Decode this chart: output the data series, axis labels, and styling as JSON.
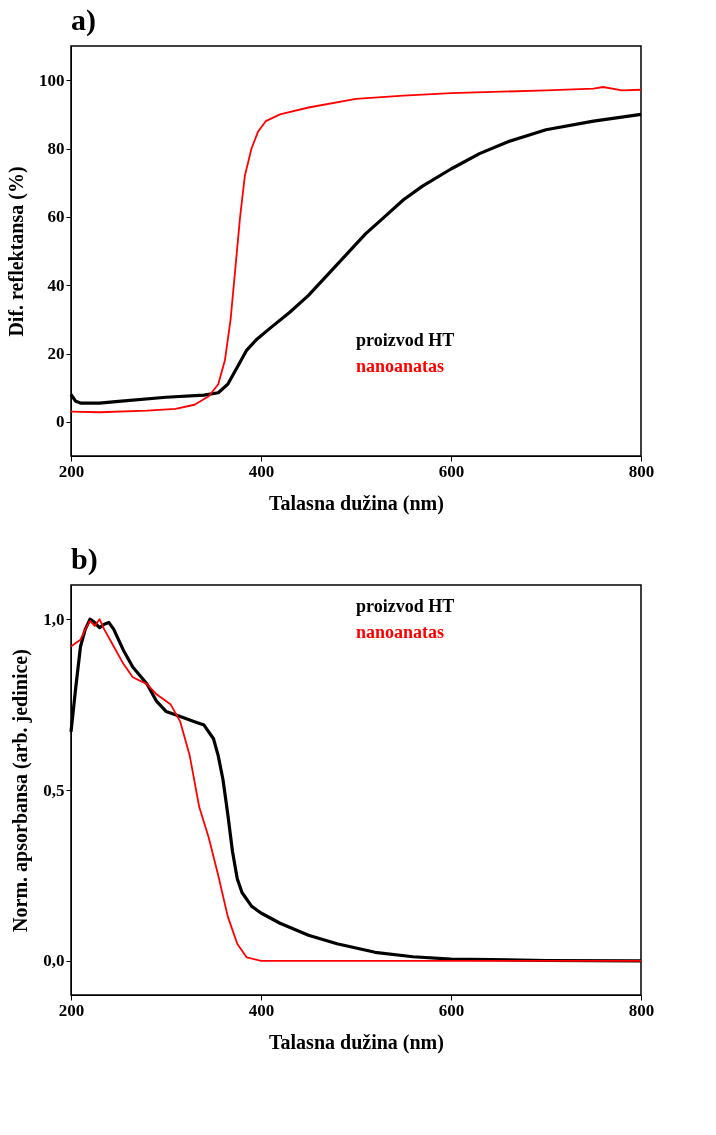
{
  "chart_data": [
    {
      "type": "line",
      "title": "a)",
      "xlabel": "Talasna dužina (nm)",
      "ylabel": "Dif. reflektansa (%)",
      "xlim": [
        200,
        800
      ],
      "ylim": [
        -10,
        110
      ],
      "xticks": [
        200,
        400,
        600,
        800
      ],
      "yticks": [
        0,
        20,
        40,
        60,
        80,
        100
      ],
      "grid": false,
      "legend": "bottom right",
      "series": [
        {
          "name": "proizvod HT",
          "color": "#000000",
          "x": [
            200,
            205,
            210,
            230,
            250,
            300,
            340,
            355,
            365,
            375,
            385,
            395,
            410,
            430,
            450,
            470,
            490,
            510,
            530,
            550,
            570,
            600,
            630,
            660,
            700,
            750,
            800
          ],
          "values": [
            8,
            6,
            5.5,
            5.5,
            6,
            7.2,
            7.8,
            8.5,
            11,
            16,
            21,
            24,
            27.5,
            32,
            37,
            43,
            49,
            55,
            60,
            65,
            69,
            74,
            78.5,
            82,
            85.5,
            88,
            90
          ]
        },
        {
          "name": "nanoanatas",
          "color": "#ff0000",
          "x": [
            200,
            230,
            280,
            310,
            330,
            345,
            355,
            362,
            368,
            373,
            378,
            383,
            390,
            397,
            405,
            420,
            450,
            500,
            550,
            600,
            700,
            750,
            760,
            780,
            800
          ],
          "values": [
            3,
            2.8,
            3.3,
            3.8,
            5,
            7.5,
            11,
            18,
            30,
            45,
            60,
            72,
            80,
            85,
            88,
            90,
            92,
            94.5,
            95.5,
            96.2,
            97,
            97.5,
            98,
            97,
            97.2
          ]
        }
      ]
    },
    {
      "type": "line",
      "title": "b)",
      "xlabel": "Talasna dužina (nm)",
      "ylabel": "Norm. apsorbansa (arb. jedinice)",
      "xlim": [
        200,
        800
      ],
      "ylim": [
        -0.1,
        1.1
      ],
      "xticks": [
        200,
        400,
        600,
        800
      ],
      "yticks": [
        {
          "value": 0,
          "label": "0,0"
        },
        {
          "value": 0.5,
          "label": "0,5"
        },
        {
          "value": 1,
          "label": "1,0"
        }
      ],
      "grid": false,
      "legend": "top right",
      "series": [
        {
          "name": "proizvod HT",
          "color": "#000000",
          "x": [
            200,
            205,
            210,
            215,
            220,
            225,
            230,
            235,
            240,
            245,
            255,
            265,
            280,
            290,
            300,
            310,
            320,
            330,
            340,
            350,
            355,
            360,
            365,
            370,
            375,
            380,
            390,
            400,
            420,
            450,
            480,
            520,
            560,
            600,
            700,
            800
          ],
          "values": [
            0.67,
            0.8,
            0.92,
            0.97,
            1.0,
            0.99,
            0.975,
            0.985,
            0.99,
            0.97,
            0.91,
            0.86,
            0.81,
            0.76,
            0.73,
            0.72,
            0.71,
            0.7,
            0.69,
            0.65,
            0.6,
            0.53,
            0.43,
            0.32,
            0.24,
            0.2,
            0.16,
            0.14,
            0.11,
            0.075,
            0.05,
            0.025,
            0.012,
            0.005,
            0.001,
            0
          ]
        },
        {
          "name": "nanoanatas",
          "color": "#ff0000",
          "x": [
            200,
            205,
            210,
            215,
            220,
            225,
            230,
            235,
            245,
            255,
            265,
            280,
            290,
            305,
            315,
            325,
            335,
            345,
            355,
            365,
            375,
            385,
            400,
            500,
            800
          ],
          "values": [
            0.92,
            0.93,
            0.94,
            0.97,
            0.995,
            0.98,
            1.0,
            0.97,
            0.92,
            0.87,
            0.83,
            0.81,
            0.78,
            0.75,
            0.7,
            0.6,
            0.45,
            0.36,
            0.25,
            0.13,
            0.05,
            0.01,
            0,
            0,
            0
          ]
        }
      ]
    }
  ]
}
